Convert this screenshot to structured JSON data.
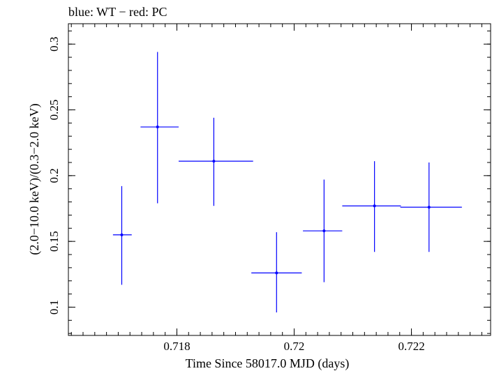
{
  "chart_data": {
    "type": "scatter",
    "title": "blue: WT − red: PC",
    "xlabel": "Time Since 58017.0 MJD (days)",
    "ylabel": "(2.0−10.0 keV)/(0.3−2.0 keV)",
    "xlim": [
      0.71615,
      0.72335
    ],
    "ylim": [
      0.0785,
      0.3155
    ],
    "x_ticks": [
      {
        "value": 0.718,
        "label": "0.718"
      },
      {
        "value": 0.72,
        "label": "0.72"
      },
      {
        "value": 0.722,
        "label": "0.722"
      }
    ],
    "x_minor_step": 0.0002,
    "y_ticks": [
      {
        "value": 0.1,
        "label": "0.1"
      },
      {
        "value": 0.15,
        "label": "0.15"
      },
      {
        "value": 0.2,
        "label": "0.2"
      },
      {
        "value": 0.25,
        "label": "0.25"
      },
      {
        "value": 0.3,
        "label": "0.3"
      }
    ],
    "y_minor_step": 0.01,
    "series": [
      {
        "name": "WT",
        "color": "#0000ff",
        "points": [
          {
            "x": 0.71706,
            "y": 0.155,
            "x_lo": 0.71691,
            "x_hi": 0.71723,
            "y_lo": 0.117,
            "y_hi": 0.192
          },
          {
            "x": 0.71767,
            "y": 0.237,
            "x_lo": 0.71738,
            "x_hi": 0.71803,
            "y_lo": 0.179,
            "y_hi": 0.294
          },
          {
            "x": 0.71863,
            "y": 0.211,
            "x_lo": 0.71803,
            "x_hi": 0.7193,
            "y_lo": 0.177,
            "y_hi": 0.244
          },
          {
            "x": 0.7197,
            "y": 0.126,
            "x_lo": 0.71927,
            "x_hi": 0.72013,
            "y_lo": 0.096,
            "y_hi": 0.157
          },
          {
            "x": 0.72051,
            "y": 0.158,
            "x_lo": 0.72015,
            "x_hi": 0.72082,
            "y_lo": 0.119,
            "y_hi": 0.197
          },
          {
            "x": 0.72137,
            "y": 0.177,
            "x_lo": 0.72082,
            "x_hi": 0.72182,
            "y_lo": 0.142,
            "y_hi": 0.211
          },
          {
            "x": 0.7223,
            "y": 0.176,
            "x_lo": 0.72181,
            "x_hi": 0.72286,
            "y_lo": 0.142,
            "y_hi": 0.21
          }
        ]
      }
    ]
  }
}
